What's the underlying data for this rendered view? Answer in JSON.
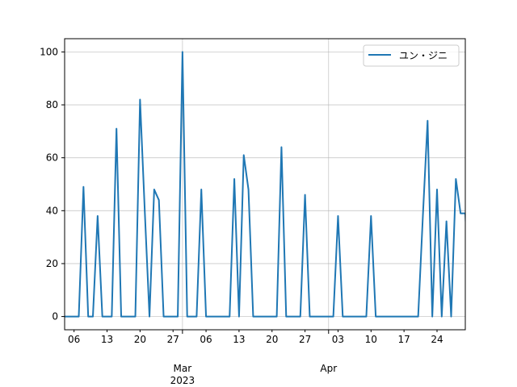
{
  "chart_data": {
    "type": "line",
    "title": "",
    "xlabel": "",
    "ylabel": "",
    "x_start": "2023-02-04",
    "x_end": "2023-04-30",
    "ylim": [
      -5,
      105
    ],
    "grid": true,
    "legend_position": "top-right",
    "y_ticks": [
      0,
      20,
      40,
      60,
      80,
      100
    ],
    "x_ticks": [
      {
        "date": "2023-02-06",
        "label": "06"
      },
      {
        "date": "2023-02-13",
        "label": "13"
      },
      {
        "date": "2023-02-20",
        "label": "20"
      },
      {
        "date": "2023-02-27",
        "label": "27"
      },
      {
        "date": "2023-03-01",
        "label": "Mar\n2023"
      },
      {
        "date": "2023-03-06",
        "label": "06"
      },
      {
        "date": "2023-03-13",
        "label": "13"
      },
      {
        "date": "2023-03-20",
        "label": "20"
      },
      {
        "date": "2023-03-27",
        "label": "27"
      },
      {
        "date": "2023-04-01",
        "label": "Apr"
      },
      {
        "date": "2023-04-03",
        "label": "03"
      },
      {
        "date": "2023-04-10",
        "label": "10"
      },
      {
        "date": "2023-04-17",
        "label": "17"
      },
      {
        "date": "2023-04-24",
        "label": "24"
      }
    ],
    "series": [
      {
        "name": "ユン・ジニ",
        "color": "#1f77b4",
        "points": [
          [
            "2023-02-04",
            0
          ],
          [
            "2023-02-05",
            0
          ],
          [
            "2023-02-06",
            0
          ],
          [
            "2023-02-07",
            0
          ],
          [
            "2023-02-08",
            49
          ],
          [
            "2023-02-09",
            0
          ],
          [
            "2023-02-10",
            0
          ],
          [
            "2023-02-11",
            38
          ],
          [
            "2023-02-12",
            0
          ],
          [
            "2023-02-13",
            0
          ],
          [
            "2023-02-14",
            0
          ],
          [
            "2023-02-15",
            71
          ],
          [
            "2023-02-16",
            0
          ],
          [
            "2023-02-17",
            0
          ],
          [
            "2023-02-18",
            0
          ],
          [
            "2023-02-19",
            0
          ],
          [
            "2023-02-20",
            82
          ],
          [
            "2023-02-21",
            40
          ],
          [
            "2023-02-22",
            0
          ],
          [
            "2023-02-23",
            48
          ],
          [
            "2023-02-24",
            44
          ],
          [
            "2023-02-25",
            0
          ],
          [
            "2023-02-26",
            0
          ],
          [
            "2023-02-27",
            0
          ],
          [
            "2023-02-28",
            0
          ],
          [
            "2023-03-01",
            100
          ],
          [
            "2023-03-02",
            0
          ],
          [
            "2023-03-03",
            0
          ],
          [
            "2023-03-04",
            0
          ],
          [
            "2023-03-05",
            48
          ],
          [
            "2023-03-06",
            0
          ],
          [
            "2023-03-07",
            0
          ],
          [
            "2023-03-08",
            0
          ],
          [
            "2023-03-09",
            0
          ],
          [
            "2023-03-10",
            0
          ],
          [
            "2023-03-11",
            0
          ],
          [
            "2023-03-12",
            52
          ],
          [
            "2023-03-13",
            0
          ],
          [
            "2023-03-14",
            61
          ],
          [
            "2023-03-15",
            48
          ],
          [
            "2023-03-16",
            0
          ],
          [
            "2023-03-17",
            0
          ],
          [
            "2023-03-18",
            0
          ],
          [
            "2023-03-19",
            0
          ],
          [
            "2023-03-20",
            0
          ],
          [
            "2023-03-21",
            0
          ],
          [
            "2023-03-22",
            64
          ],
          [
            "2023-03-23",
            0
          ],
          [
            "2023-03-24",
            0
          ],
          [
            "2023-03-25",
            0
          ],
          [
            "2023-03-26",
            0
          ],
          [
            "2023-03-27",
            46
          ],
          [
            "2023-03-28",
            0
          ],
          [
            "2023-03-29",
            0
          ],
          [
            "2023-03-30",
            0
          ],
          [
            "2023-03-31",
            0
          ],
          [
            "2023-04-01",
            0
          ],
          [
            "2023-04-02",
            0
          ],
          [
            "2023-04-03",
            38
          ],
          [
            "2023-04-04",
            0
          ],
          [
            "2023-04-05",
            0
          ],
          [
            "2023-04-06",
            0
          ],
          [
            "2023-04-07",
            0
          ],
          [
            "2023-04-08",
            0
          ],
          [
            "2023-04-09",
            0
          ],
          [
            "2023-04-10",
            38
          ],
          [
            "2023-04-11",
            0
          ],
          [
            "2023-04-12",
            0
          ],
          [
            "2023-04-13",
            0
          ],
          [
            "2023-04-14",
            0
          ],
          [
            "2023-04-15",
            0
          ],
          [
            "2023-04-16",
            0
          ],
          [
            "2023-04-17",
            0
          ],
          [
            "2023-04-18",
            0
          ],
          [
            "2023-04-19",
            0
          ],
          [
            "2023-04-20",
            0
          ],
          [
            "2023-04-21",
            38
          ],
          [
            "2023-04-22",
            74
          ],
          [
            "2023-04-23",
            0
          ],
          [
            "2023-04-24",
            48
          ],
          [
            "2023-04-25",
            0
          ],
          [
            "2023-04-26",
            36
          ],
          [
            "2023-04-27",
            0
          ],
          [
            "2023-04-28",
            52
          ],
          [
            "2023-04-29",
            39
          ],
          [
            "2023-04-30",
            39
          ],
          [
            "2023-05-01",
            0
          ]
        ]
      }
    ]
  }
}
